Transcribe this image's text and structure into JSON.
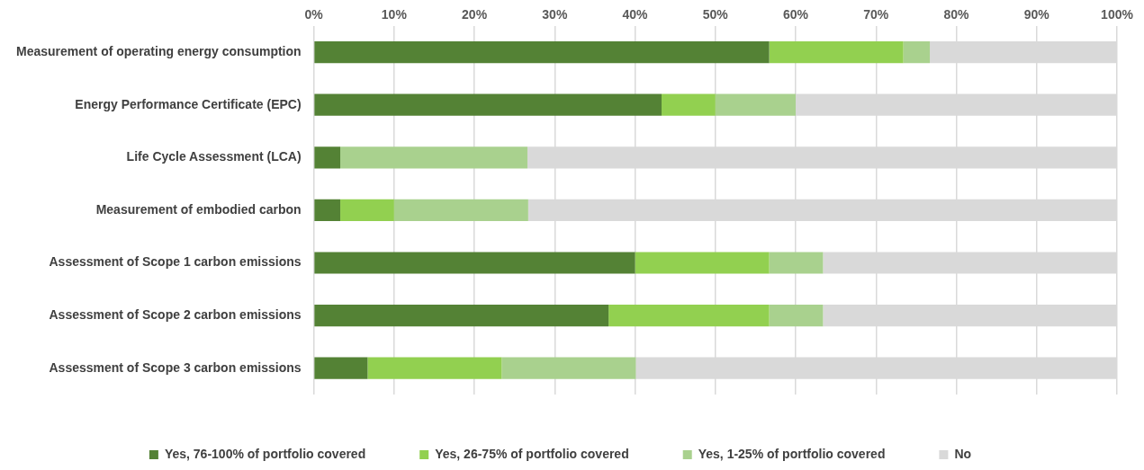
{
  "chart_data": {
    "type": "bar",
    "orientation": "horizontal",
    "stacked": true,
    "categories": [
      "Measurement of operating energy consumption",
      "Energy Performance Certificate (EPC)",
      "Life Cycle Assessment (LCA)",
      "Measurement of embodied carbon",
      "Assessment of Scope 1 carbon emissions",
      "Assessment of Scope 2 carbon emissions",
      "Assessment of Scope 3 carbon emissions"
    ],
    "series": [
      {
        "name": "Yes, 76-100% of portfolio covered",
        "color": "#548235",
        "values": [
          56.7,
          43.3,
          3.3,
          3.3,
          40,
          36.7,
          6.7
        ]
      },
      {
        "name": "Yes, 26-75% of portfolio covered",
        "color": "#92d050",
        "values": [
          16.7,
          6.7,
          0,
          6.7,
          16.7,
          20,
          16.7
        ]
      },
      {
        "name": "Yes, 1-25% of portfolio covered",
        "color": "#a9d18e",
        "values": [
          3.3,
          10,
          23.3,
          16.7,
          6.7,
          6.7,
          16.7
        ]
      },
      {
        "name": "No",
        "color": "#d9d9d9",
        "values": [
          23.3,
          40,
          73.4,
          73.3,
          36.6,
          36.6,
          60
        ]
      }
    ],
    "xlim": [
      0,
      100
    ],
    "xticks": [
      {
        "value": 0,
        "label": "0%"
      },
      {
        "value": 10,
        "label": "10%"
      },
      {
        "value": 20,
        "label": "20%"
      },
      {
        "value": 30,
        "label": "30%"
      },
      {
        "value": 40,
        "label": "40%"
      },
      {
        "value": 50,
        "label": "50%"
      },
      {
        "value": 60,
        "label": "60%"
      },
      {
        "value": 70,
        "label": "70%"
      },
      {
        "value": 80,
        "label": "80%"
      },
      {
        "value": 90,
        "label": "90%"
      },
      {
        "value": 100,
        "label": "100%"
      }
    ],
    "grid": "x",
    "legend": "bottom"
  }
}
